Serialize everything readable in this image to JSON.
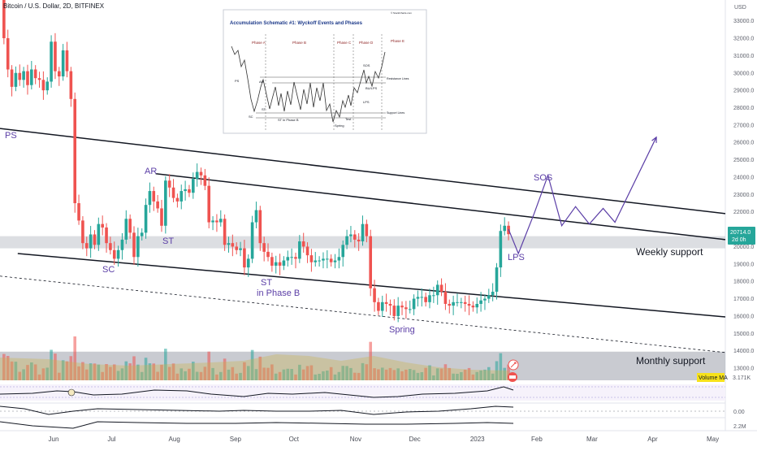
{
  "header": {
    "symbol_title": "Bitcoin / U.S. Dollar, 2D, BITFINEX"
  },
  "price_axis": {
    "currency": "USD",
    "ticks": [
      13000,
      14000,
      15000,
      16000,
      17000,
      18000,
      19000,
      20000,
      21000,
      22000,
      23000,
      24000,
      25000,
      26000,
      27000,
      28000,
      29000,
      30000,
      31000,
      32000,
      33000
    ],
    "last_price": "20714.0",
    "countdown": "2d 0h"
  },
  "time_axis": {
    "labels": [
      "Jun",
      "Jul",
      "Aug",
      "Sep",
      "Oct",
      "Nov",
      "Dec",
      "2023",
      "Feb",
      "Mar",
      "Apr",
      "May"
    ]
  },
  "wyckoff_labels": [
    "PS",
    "AR",
    "ST",
    "SC",
    "ST",
    "in Phase B",
    "Spring",
    "LPS",
    "SOS"
  ],
  "zones": {
    "weekly": "Weekly support",
    "monthly": "Monthly support"
  },
  "volume_label": {
    "name": "Volume MA",
    "value": "3.171K"
  },
  "lower_panes": {
    "ticks": [
      "0.00",
      "2.2M"
    ]
  },
  "inset": {
    "title": "Accumulation Schematic #1: Wyckoff Events and Phases",
    "credit": "© StockCharts.com",
    "phases": [
      "Phase A",
      "Phase B",
      "Phase C",
      "Phase D",
      "Phase E"
    ],
    "events": [
      "PS",
      "SC",
      "AR",
      "ST",
      "ST in Phase B",
      "Spring",
      "Test",
      "SOS",
      "LPS",
      "BU/LPS"
    ],
    "lines": [
      "Resistance Lines",
      "Support Lines"
    ]
  },
  "colors": {
    "up": "#26a69a",
    "down": "#ef5350",
    "labels": "#5b3ea6",
    "zone": "#b2b5be"
  },
  "chart_data": {
    "type": "candlestick",
    "title": "Bitcoin / U.S. Dollar, 2D, BITFINEX",
    "ylim": [
      12300,
      34200
    ],
    "x_range": [
      "2022-05-05",
      "2023-05-08"
    ],
    "x_ticks": [
      "Jun",
      "Jul",
      "Aug",
      "Sep",
      "Oct",
      "Nov",
      "Dec",
      "2023",
      "Feb",
      "Mar",
      "Apr",
      "May"
    ],
    "close_path": [
      [
        "2022-05-05",
        34200
      ],
      [
        "2022-05-07",
        32000
      ],
      [
        "2022-05-09",
        30200
      ],
      [
        "2022-05-11",
        29200
      ],
      [
        "2022-05-13",
        30000
      ],
      [
        "2022-05-15",
        29600
      ],
      [
        "2022-05-17",
        30100
      ],
      [
        "2022-05-19",
        29300
      ],
      [
        "2022-05-21",
        30200
      ],
      [
        "2022-05-23",
        29700
      ],
      [
        "2022-05-25",
        29600
      ],
      [
        "2022-05-27",
        29000
      ],
      [
        "2022-05-29",
        29500
      ],
      [
        "2022-05-31",
        31800
      ],
      [
        "2022-06-02",
        30100
      ],
      [
        "2022-06-04",
        29800
      ],
      [
        "2022-06-06",
        31300
      ],
      [
        "2022-06-08",
        30100
      ],
      [
        "2022-06-10",
        28500
      ],
      [
        "2022-06-12",
        22500
      ],
      [
        "2022-06-14",
        21500
      ],
      [
        "2022-06-16",
        20200
      ],
      [
        "2022-06-18",
        19900
      ],
      [
        "2022-06-20",
        20700
      ],
      [
        "2022-06-22",
        20100
      ],
      [
        "2022-06-24",
        21300
      ],
      [
        "2022-06-26",
        21100
      ],
      [
        "2022-06-28",
        20200
      ],
      [
        "2022-06-30",
        19800
      ],
      [
        "2022-07-02",
        19300
      ],
      [
        "2022-07-04",
        19800
      ],
      [
        "2022-07-06",
        20400
      ],
      [
        "2022-07-08",
        21600
      ],
      [
        "2022-07-10",
        20800
      ],
      [
        "2022-07-12",
        19400
      ],
      [
        "2022-07-14",
        20600
      ],
      [
        "2022-07-16",
        20800
      ],
      [
        "2022-07-18",
        22400
      ],
      [
        "2022-07-20",
        23200
      ],
      [
        "2022-07-22",
        22600
      ],
      [
        "2022-07-24",
        22200
      ],
      [
        "2022-07-26",
        21200
      ],
      [
        "2022-07-28",
        23800
      ],
      [
        "2022-07-30",
        23400
      ],
      [
        "2022-08-01",
        22800
      ],
      [
        "2022-08-03",
        22600
      ],
      [
        "2022-08-05",
        23200
      ],
      [
        "2022-08-07",
        23300
      ],
      [
        "2022-08-09",
        23100
      ],
      [
        "2022-08-11",
        23900
      ],
      [
        "2022-08-13",
        24300
      ],
      [
        "2022-08-15",
        24100
      ],
      [
        "2022-08-17",
        23500
      ],
      [
        "2022-08-19",
        21400
      ],
      [
        "2022-08-21",
        21500
      ],
      [
        "2022-08-23",
        21400
      ],
      [
        "2022-08-25",
        21600
      ],
      [
        "2022-08-27",
        20100
      ],
      [
        "2022-08-29",
        20200
      ],
      [
        "2022-08-31",
        20000
      ],
      [
        "2022-09-02",
        19800
      ],
      [
        "2022-09-04",
        19900
      ],
      [
        "2022-09-06",
        18800
      ],
      [
        "2022-09-08",
        19300
      ],
      [
        "2022-09-10",
        21400
      ],
      [
        "2022-09-12",
        22100
      ],
      [
        "2022-09-14",
        20200
      ],
      [
        "2022-09-16",
        19700
      ],
      [
        "2022-09-18",
        19400
      ],
      [
        "2022-09-20",
        18900
      ],
      [
        "2022-09-22",
        19100
      ],
      [
        "2022-09-24",
        18900
      ],
      [
        "2022-09-26",
        19200
      ],
      [
        "2022-09-28",
        19400
      ],
      [
        "2022-09-30",
        19400
      ],
      [
        "2022-10-02",
        19300
      ],
      [
        "2022-10-04",
        20300
      ],
      [
        "2022-10-06",
        20000
      ],
      [
        "2022-10-08",
        19500
      ],
      [
        "2022-10-10",
        19100
      ],
      [
        "2022-10-12",
        19200
      ],
      [
        "2022-10-14",
        19200
      ],
      [
        "2022-10-16",
        19300
      ],
      [
        "2022-10-18",
        19300
      ],
      [
        "2022-10-20",
        19100
      ],
      [
        "2022-10-22",
        19200
      ],
      [
        "2022-10-24",
        19400
      ],
      [
        "2022-10-26",
        20100
      ],
      [
        "2022-10-28",
        20600
      ],
      [
        "2022-10-30",
        20700
      ],
      [
        "2022-11-01",
        20400
      ],
      [
        "2022-11-03",
        20300
      ],
      [
        "2022-11-05",
        21300
      ],
      [
        "2022-11-07",
        20600
      ],
      [
        "2022-11-09",
        17600
      ],
      [
        "2022-11-11",
        16800
      ],
      [
        "2022-11-13",
        16300
      ],
      [
        "2022-11-15",
        16800
      ],
      [
        "2022-11-17",
        16700
      ],
      [
        "2022-11-19",
        16600
      ],
      [
        "2022-11-21",
        16000
      ],
      [
        "2022-11-23",
        16600
      ],
      [
        "2022-11-25",
        16500
      ],
      [
        "2022-11-27",
        16400
      ],
      [
        "2022-11-29",
        16400
      ],
      [
        "2022-12-01",
        17000
      ],
      [
        "2022-12-03",
        17100
      ],
      [
        "2022-12-05",
        17100
      ],
      [
        "2022-12-07",
        16800
      ],
      [
        "2022-12-09",
        17200
      ],
      [
        "2022-12-11",
        17200
      ],
      [
        "2022-12-13",
        17800
      ],
      [
        "2022-12-15",
        17400
      ],
      [
        "2022-12-17",
        16700
      ],
      [
        "2022-12-19",
        16600
      ],
      [
        "2022-12-21",
        16800
      ],
      [
        "2022-12-23",
        16800
      ],
      [
        "2022-12-25",
        16800
      ],
      [
        "2022-12-27",
        16700
      ],
      [
        "2022-12-29",
        16600
      ],
      [
        "2022-12-31",
        16500
      ],
      [
        "2023-01-02",
        16700
      ],
      [
        "2023-01-04",
        16900
      ],
      [
        "2023-01-06",
        17000
      ],
      [
        "2023-01-08",
        17200
      ],
      [
        "2023-01-10",
        17400
      ],
      [
        "2023-01-12",
        18800
      ],
      [
        "2023-01-14",
        20900
      ],
      [
        "2023-01-16",
        21200
      ],
      [
        "2023-01-18",
        20714
      ]
    ],
    "trendlines": [
      {
        "name": "upper",
        "points": [
          [
            "2022-05-05",
            26800
          ],
          [
            "2023-05-08",
            21900
          ]
        ]
      },
      {
        "name": "mid",
        "points": [
          [
            "2022-07-23",
            24200
          ],
          [
            "2023-05-08",
            20400
          ]
        ]
      },
      {
        "name": "lower",
        "points": [
          [
            "2022-05-14",
            19600
          ],
          [
            "2023-05-08",
            15950
          ]
        ]
      },
      {
        "name": "dashed",
        "points": [
          [
            "2022-05-05",
            18300
          ],
          [
            "2023-05-08",
            13900
          ]
        ]
      }
    ],
    "projection": [
      [
        "2023-01-18",
        21000
      ],
      [
        "2023-01-23",
        19600
      ],
      [
        "2023-01-31",
        21900
      ],
      [
        "2023-02-07",
        24100
      ],
      [
        "2023-02-14",
        21200
      ],
      [
        "2023-02-21",
        22300
      ],
      [
        "2023-02-28",
        21300
      ],
      [
        "2023-03-07",
        22200
      ],
      [
        "2023-03-13",
        21400
      ],
      [
        "2023-04-03",
        26300
      ]
    ],
    "zones": [
      {
        "name": "Weekly support",
        "from": 19900,
        "to": 20600
      },
      {
        "name": "Monthly support",
        "from": 12300,
        "to": 13950
      }
    ],
    "annotations": [
      {
        "label": "PS",
        "x": "2022-05-07",
        "y": 26600
      },
      {
        "label": "AR",
        "x": "2022-07-18",
        "y": 24700
      },
      {
        "label": "ST",
        "x": "2022-07-21",
        "y": 20300
      },
      {
        "label": "SC",
        "x": "2022-06-18",
        "y": 19300
      },
      {
        "label": "ST in Phase B",
        "x": "2022-09-26",
        "y": 17800
      },
      {
        "label": "Spring",
        "x": "2022-11-25",
        "y": 15100
      },
      {
        "label": "LPS",
        "x": "2023-01-23",
        "y": 19600
      },
      {
        "label": "SOS",
        "x": "2023-01-29",
        "y": 24200
      }
    ]
  }
}
